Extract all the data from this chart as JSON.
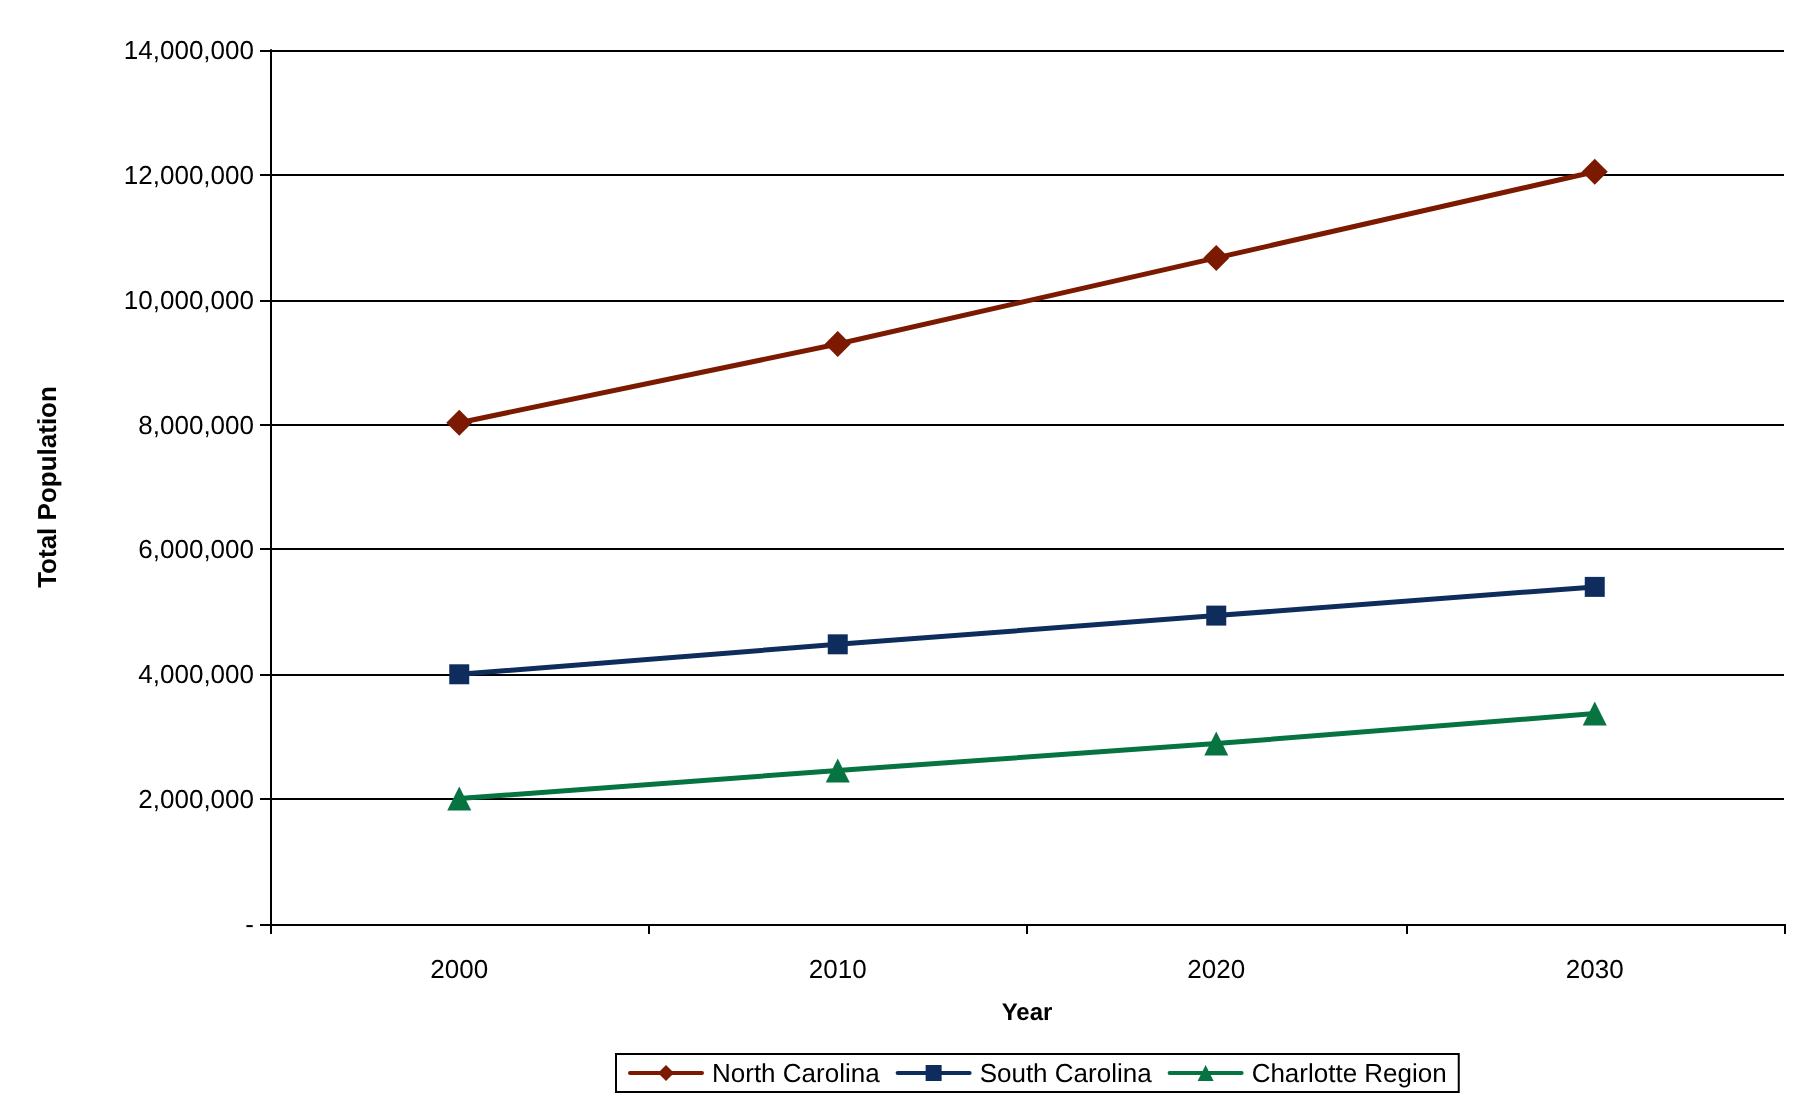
{
  "chart_data": {
    "type": "line",
    "xlabel": "Year",
    "ylabel": "Total Population",
    "categories": [
      "2000",
      "2010",
      "2020",
      "2030"
    ],
    "series": [
      {
        "name": "North Carolina",
        "color": "#7b1a00",
        "marker": "diamond",
        "values": [
          8030000,
          9290000,
          10670000,
          12050000
        ]
      },
      {
        "name": "South Carolina",
        "color": "#0f2d5c",
        "marker": "square",
        "values": [
          4000000,
          4480000,
          4940000,
          5400000
        ]
      },
      {
        "name": "Charlotte Region",
        "color": "#077340",
        "marker": "triangle",
        "values": [
          2010000,
          2460000,
          2890000,
          3370000
        ]
      }
    ],
    "ylim": [
      0,
      14000000
    ],
    "yticks": [
      {
        "value": 0,
        "label": "-"
      },
      {
        "value": 2000000,
        "label": "2,000,000"
      },
      {
        "value": 4000000,
        "label": "4,000,000"
      },
      {
        "value": 6000000,
        "label": "6,000,000"
      },
      {
        "value": 8000000,
        "label": "8,000,000"
      },
      {
        "value": 10000000,
        "label": "10,000,000"
      },
      {
        "value": 12000000,
        "label": "12,000,000"
      },
      {
        "value": 14000000,
        "label": "14,000,000"
      }
    ],
    "grid": "y",
    "legend": "bottom"
  }
}
